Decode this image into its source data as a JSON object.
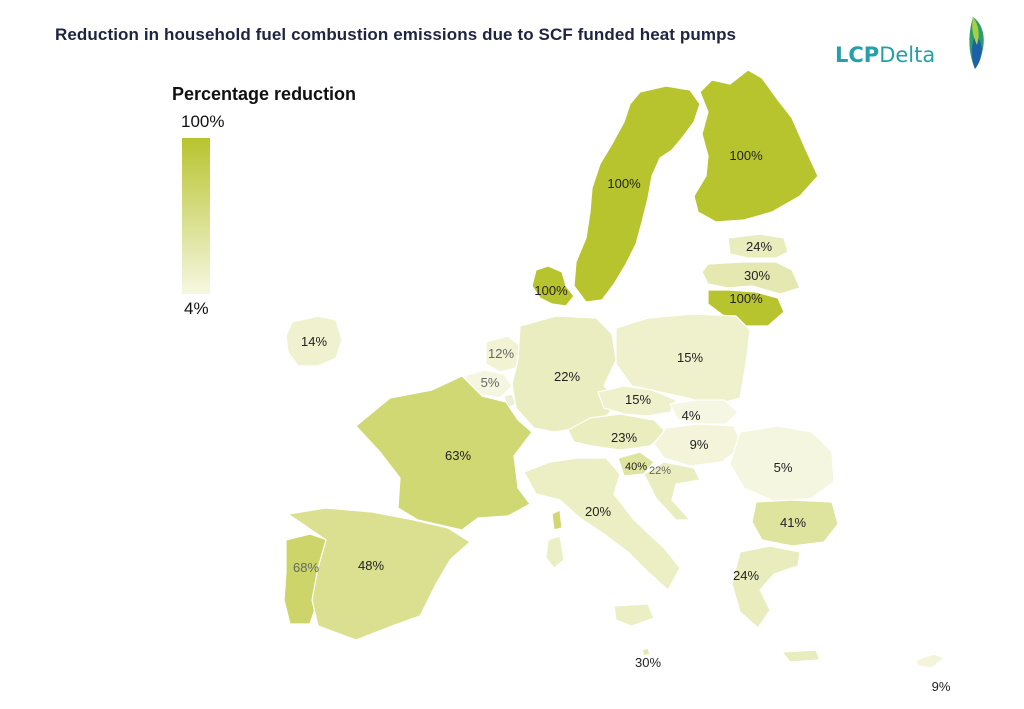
{
  "title": "Reduction in household fuel combustion emissions due to SCF funded heat pumps",
  "logo": {
    "text_a": "LCP",
    "text_b": "Delta"
  },
  "legend": {
    "title": "Percentage reduction",
    "max_label": "100%",
    "min_label": "4%",
    "color_high": "#b8c42e",
    "color_low": "#f6f7e2"
  },
  "chart_data": {
    "type": "choropleth",
    "value_range": [
      4,
      100
    ],
    "regions": [
      {
        "name": "Finland",
        "value": 100,
        "label": "100%"
      },
      {
        "name": "Sweden",
        "value": 100,
        "label": "100%"
      },
      {
        "name": "Denmark",
        "value": 100,
        "label": "100%"
      },
      {
        "name": "Estonia",
        "value": 24,
        "label": "24%"
      },
      {
        "name": "Latvia",
        "value": 30,
        "label": "30%"
      },
      {
        "name": "Lithuania",
        "value": 100,
        "label": "100%"
      },
      {
        "name": "Ireland",
        "value": 14,
        "label": "14%"
      },
      {
        "name": "Netherlands",
        "value": 12,
        "label": "12%"
      },
      {
        "name": "Belgium",
        "value": 5,
        "label": "5%"
      },
      {
        "name": "Germany",
        "value": 22,
        "label": "22%"
      },
      {
        "name": "Poland",
        "value": 15,
        "label": "15%"
      },
      {
        "name": "Czechia",
        "value": 15,
        "label": "15%"
      },
      {
        "name": "Slovakia",
        "value": 4,
        "label": "4%"
      },
      {
        "name": "Austria",
        "value": 23,
        "label": "23%"
      },
      {
        "name": "Hungary",
        "value": 9,
        "label": "9%"
      },
      {
        "name": "Romania",
        "value": 5,
        "label": "5%"
      },
      {
        "name": "France",
        "value": 63,
        "label": "63%"
      },
      {
        "name": "Slovenia",
        "value": 40,
        "label": "40%"
      },
      {
        "name": "Croatia",
        "value": 22,
        "label": "22%"
      },
      {
        "name": "Italy",
        "value": 20,
        "label": "20%"
      },
      {
        "name": "Bulgaria",
        "value": 41,
        "label": "41%"
      },
      {
        "name": "Portugal",
        "value": 68,
        "label": "68%"
      },
      {
        "name": "Spain",
        "value": 48,
        "label": "48%"
      },
      {
        "name": "Greece",
        "value": 24,
        "label": "24%"
      },
      {
        "name": "Malta",
        "value": 30,
        "label": "30%"
      },
      {
        "name": "Cyprus",
        "value": 9,
        "label": "9%"
      },
      {
        "name": "Luxembourg",
        "value": null,
        "label": ""
      }
    ]
  }
}
